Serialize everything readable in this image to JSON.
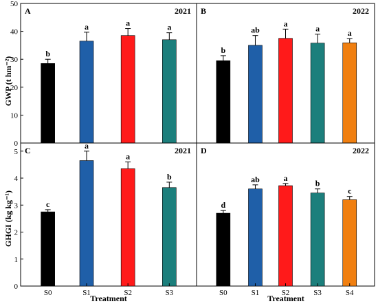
{
  "colors": {
    "S0": "#000000",
    "S1": "#1f5fa8",
    "S2": "#ff1a1a",
    "S3": "#1c7f7c",
    "S4": "#f07f10"
  },
  "shared": {
    "xlabel": "Treatment",
    "gwp_ylabel": "GWP (t hm⁻²)",
    "ghgi_ylabel": "GHGI (kg kg⁻¹)"
  },
  "chart_data": [
    {
      "panel": "A",
      "year": "2021",
      "type": "bar",
      "categories": [
        "S0",
        "S1",
        "S2",
        "S3"
      ],
      "values": [
        28.5,
        36.5,
        38.5,
        37.0
      ],
      "errors": [
        1.5,
        3.2,
        2.5,
        2.5
      ],
      "letters": [
        "b",
        "a",
        "a",
        "a"
      ],
      "ylabel": "GWP (t hm⁻²)",
      "xlabel": "",
      "ylim": [
        0,
        50
      ],
      "yticks": [
        0,
        10,
        20,
        30,
        40,
        50
      ]
    },
    {
      "panel": "B",
      "year": "2022",
      "type": "bar",
      "categories": [
        "S0",
        "S1",
        "S2",
        "S3",
        "S4"
      ],
      "values": [
        29.5,
        35.0,
        37.5,
        35.8,
        35.9
      ],
      "errors": [
        1.8,
        3.5,
        3.3,
        3.2,
        1.5
      ],
      "letters": [
        "b",
        "ab",
        "a",
        "a",
        "a"
      ],
      "ylabel": "",
      "xlabel": "",
      "ylim": [
        0,
        50
      ],
      "yticks": []
    },
    {
      "panel": "C",
      "year": "2021",
      "type": "bar",
      "categories": [
        "S0",
        "S1",
        "S2",
        "S3"
      ],
      "values": [
        2.75,
        4.65,
        4.35,
        3.65
      ],
      "errors": [
        0.08,
        0.35,
        0.25,
        0.2
      ],
      "letters": [
        "c",
        "a",
        "a",
        "b"
      ],
      "ylabel": "GHGI (kg kg⁻¹)",
      "xlabel": "Treatment",
      "ylim": [
        0,
        5.3
      ],
      "yticks": [
        0,
        1,
        2,
        3,
        4,
        5
      ]
    },
    {
      "panel": "D",
      "year": "2022",
      "type": "bar",
      "categories": [
        "S0",
        "S1",
        "S2",
        "S3",
        "S4"
      ],
      "values": [
        2.7,
        3.6,
        3.72,
        3.45,
        3.2
      ],
      "errors": [
        0.1,
        0.15,
        0.08,
        0.15,
        0.12
      ],
      "letters": [
        "d",
        "ab",
        "a",
        "b",
        "c"
      ],
      "ylabel": "",
      "xlabel": "Treatment",
      "ylim": [
        0,
        5.3
      ],
      "yticks": []
    }
  ]
}
